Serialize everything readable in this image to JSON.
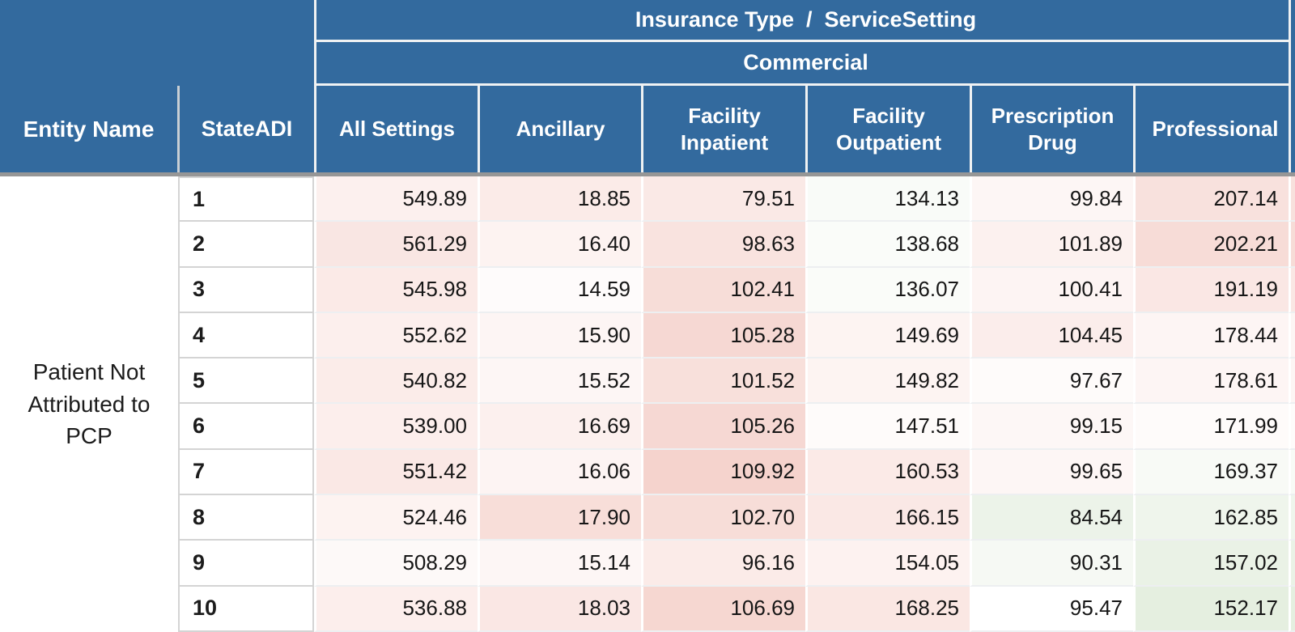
{
  "colors": {
    "header_bg": "#336a9e",
    "header_text": "#ffffff",
    "separator_gray": "#969696",
    "max_red_tint": "#f5d3cd",
    "max_green_tint": "#e5efe0"
  },
  "chart_data": {
    "type": "table",
    "title": "Insurance Type  /  ServiceSetting",
    "group": "Commercial",
    "row_header": "Entity Name",
    "row_dimension": "StateADI",
    "entity": "Patient Not Attributed to PCP",
    "columns": [
      "All Settings",
      "Ancillary",
      "Facility Inpatient",
      "Facility Outpatient",
      "Prescription Drug",
      "Professional"
    ],
    "state_adi": [
      "1",
      "2",
      "3",
      "4",
      "5",
      "6",
      "7",
      "8",
      "9",
      "10"
    ],
    "rows": [
      [
        549.89,
        18.85,
        79.51,
        134.13,
        99.84,
        207.14
      ],
      [
        561.29,
        16.4,
        98.63,
        138.68,
        101.89,
        202.21
      ],
      [
        545.98,
        14.59,
        102.41,
        136.07,
        100.41,
        191.19
      ],
      [
        552.62,
        15.9,
        105.28,
        149.69,
        104.45,
        178.44
      ],
      [
        540.82,
        15.52,
        101.52,
        149.82,
        97.67,
        178.61
      ],
      [
        539.0,
        16.69,
        105.26,
        147.51,
        99.15,
        171.99
      ],
      [
        551.42,
        16.06,
        109.92,
        160.53,
        99.65,
        169.37
      ],
      [
        524.46,
        17.9,
        102.7,
        166.15,
        84.54,
        162.85
      ],
      [
        508.29,
        15.14,
        96.16,
        154.05,
        90.31,
        157.02
      ],
      [
        536.88,
        18.03,
        106.69,
        168.25,
        95.47,
        152.17
      ]
    ],
    "cell_tints": [
      [
        "#fcf0ee",
        "#fbebe8",
        "#fae9e6",
        "#f9fbf8",
        "#fdf6f5",
        "#f8e1dd"
      ],
      [
        "#f9e6e3",
        "#fdf3f1",
        "#f9e3df",
        "#fafcf9",
        "#fcf1ef",
        "#f7dcd7"
      ],
      [
        "#fbeae7",
        "#fefbfb",
        "#f7ddd8",
        "#fafcf9",
        "#fdf4f3",
        "#fae7e4"
      ],
      [
        "#fcefed",
        "#fdf5f4",
        "#f6d8d3",
        "#fdf4f2",
        "#fbedeb",
        "#fdf5f4"
      ],
      [
        "#fbece9",
        "#fdf6f5",
        "#f8e0db",
        "#fdf4f2",
        "#fefbfa",
        "#fdf5f4"
      ],
      [
        "#fceeec",
        "#fcf0ee",
        "#f6d8d3",
        "#fefbfa",
        "#fdf7f6",
        "#fefbfa"
      ],
      [
        "#fae8e5",
        "#fdf4f3",
        "#f5d3cd",
        "#fbeae7",
        "#fdf6f5",
        "#f8faf6"
      ],
      [
        "#fdf3f1",
        "#f8ded9",
        "#f7ddd8",
        "#fae8e5",
        "#ecf3e9",
        "#eff5ec"
      ],
      [
        "#fdf9f8",
        "#fdf6f5",
        "#fbebe8",
        "#fdf2f0",
        "#f6f9f4",
        "#eaf2e6"
      ],
      [
        "#fceeec",
        "#fae7e4",
        "#f6d7d1",
        "#fae7e3",
        "#ffffff",
        "#e5efe0"
      ]
    ],
    "color_encoding": "diverging: red = higher cost, green = lower cost",
    "grid": "white gridlines on header, light gray row separators"
  }
}
